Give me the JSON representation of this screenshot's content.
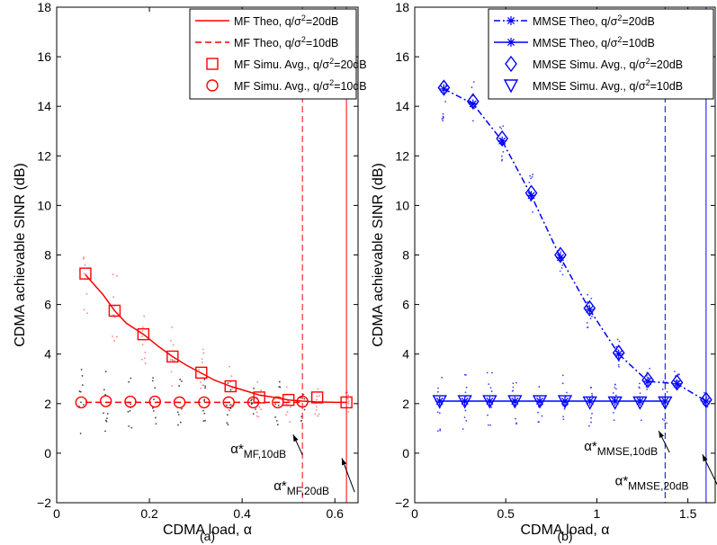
{
  "chart_data": [
    {
      "type": "line",
      "panel_label": "(a)",
      "xlabel": "CDMA load, α",
      "ylabel": "CDMA achievable SINR (dB)",
      "xlim": [
        0,
        0.65
      ],
      "ylim": [
        -2,
        18
      ],
      "xticks": [
        0,
        0.2,
        0.4,
        0.6
      ],
      "xtick_labels": [
        "0",
        "0.2",
        "0.4",
        "0.6"
      ],
      "yticks": [
        -2,
        0,
        2,
        4,
        6,
        8,
        10,
        12,
        14,
        16,
        18
      ],
      "ytick_labels": [
        "−2",
        "0",
        "2",
        "4",
        "6",
        "8",
        "10",
        "12",
        "14",
        "16",
        "18"
      ],
      "grid": false,
      "legend_position": "top-right",
      "color": "#ff0000",
      "series": [
        {
          "name": "MF Theo, q/σ²=20dB",
          "legend_main": "MF Theo, q/σ",
          "legend_sup": "2",
          "legend_tail": "=20dB",
          "style": "solid",
          "marker": "none",
          "x": [
            0.062,
            0.1,
            0.125,
            0.15,
            0.187,
            0.22,
            0.25,
            0.28,
            0.31,
            0.34,
            0.375,
            0.41,
            0.437,
            0.47,
            0.5,
            0.53,
            0.56,
            0.6,
            0.625
          ],
          "y": [
            7.2,
            6.4,
            5.75,
            5.25,
            4.8,
            4.3,
            3.9,
            3.55,
            3.25,
            2.95,
            2.7,
            2.5,
            2.35,
            2.25,
            2.15,
            2.1,
            2.07,
            2.05,
            2.05
          ]
        },
        {
          "name": "MF Theo, q/σ²=10dB",
          "legend_main": "MF Theo, q/σ",
          "legend_sup": "2",
          "legend_tail": "=10dB",
          "style": "dashed",
          "marker": "none",
          "x": [
            0.062,
            0.53
          ],
          "y": [
            2.05,
            2.05
          ]
        },
        {
          "name": "MF Simu. Avg., q/σ²=20dB",
          "legend_main": "MF Simu. Avg., q/σ",
          "legend_sup": "2",
          "legend_tail": "=20dB",
          "style": "none",
          "marker": "square",
          "x": [
            0.062,
            0.125,
            0.187,
            0.25,
            0.312,
            0.375,
            0.437,
            0.5,
            0.562,
            0.625
          ],
          "y": [
            7.25,
            5.75,
            4.8,
            3.9,
            3.25,
            2.7,
            2.25,
            2.15,
            2.25,
            2.05
          ]
        },
        {
          "name": "MF Simu. Avg., q/σ²=10dB",
          "legend_main": "MF Simu. Avg., q/σ",
          "legend_sup": "2",
          "legend_tail": "=10dB",
          "style": "none",
          "marker": "circle",
          "x": [
            0.053,
            0.106,
            0.159,
            0.212,
            0.265,
            0.318,
            0.371,
            0.424,
            0.477,
            0.53
          ],
          "y": [
            2.05,
            2.1,
            2.08,
            2.08,
            2.05,
            2.05,
            2.05,
            2.05,
            2.05,
            2.08
          ]
        }
      ],
      "vlines": [
        {
          "x": 0.53,
          "style": "dashed"
        },
        {
          "x": 0.625,
          "style": "solid"
        }
      ],
      "scatter_clouds": [
        {
          "x": [
            0.062,
            0.125,
            0.187,
            0.25,
            0.312,
            0.375,
            0.437,
            0.5,
            0.562,
            0.625
          ],
          "center": [
            7.25,
            5.75,
            4.8,
            3.9,
            3.25,
            2.7,
            2.25,
            2.15,
            2.25,
            2.05
          ],
          "spread": [
            1.9,
            1.6,
            1.4,
            1.3,
            1.1,
            1.0,
            0.9,
            0.9,
            0.8,
            0.5
          ],
          "color": "#ff8080"
        },
        {
          "x": [
            0.053,
            0.106,
            0.159,
            0.212,
            0.265,
            0.318,
            0.371,
            0.424,
            0.477,
            0.53
          ],
          "center": [
            2.05,
            2.1,
            2.08,
            2.08,
            2.05,
            2.05,
            2.05,
            2.05,
            2.05,
            2.08
          ],
          "spread": [
            1.4,
            1.3,
            1.2,
            1.2,
            1.1,
            1.0,
            1.0,
            0.9,
            0.9,
            0.8
          ],
          "color": "#404040"
        }
      ],
      "annotations": [
        {
          "main": "α*",
          "sub": "MF,10dB",
          "text_x": 0.375,
          "text_y": 0.0,
          "arrow_to": [
            0.51,
            0.75
          ]
        },
        {
          "main": "α*",
          "sub": "MF,20dB",
          "text_x": 0.468,
          "text_y": -1.5,
          "arrow_to": [
            0.615,
            -0.2
          ]
        }
      ]
    },
    {
      "type": "line",
      "panel_label": "(b)",
      "xlabel": "CDMA load, α",
      "ylabel": "CDMA achievable SINR (dB)",
      "xlim": [
        0,
        1.65
      ],
      "ylim": [
        -2,
        18
      ],
      "xticks": [
        0,
        0.5,
        1,
        1.5
      ],
      "xtick_labels": [
        "0",
        "0.5",
        "1",
        "1.5"
      ],
      "yticks": [
        -2,
        0,
        2,
        4,
        6,
        8,
        10,
        12,
        14,
        16,
        18
      ],
      "ytick_labels": [
        "−2",
        "0",
        "2",
        "4",
        "6",
        "8",
        "10",
        "12",
        "14",
        "16",
        "18"
      ],
      "grid": false,
      "legend_position": "top-right",
      "color": "#0000ff",
      "series": [
        {
          "name": "MMSE Theo, q/σ²=20dB",
          "legend_main": "MMSE Theo, q/σ",
          "legend_sup": "2",
          "legend_tail": "=20dB",
          "style": "dashdot",
          "marker": "star",
          "x": [
            0.16,
            0.32,
            0.48,
            0.64,
            0.8,
            0.96,
            1.12,
            1.28,
            1.44,
            1.6
          ],
          "y": [
            14.7,
            14.1,
            12.6,
            10.4,
            7.9,
            5.8,
            4.0,
            2.9,
            2.8,
            2.1
          ]
        },
        {
          "name": "MMSE Theo, q/σ²=10dB",
          "legend_main": "MMSE Theo, q/σ",
          "legend_sup": "2",
          "legend_tail": "=10dB",
          "style": "solid",
          "marker": "star",
          "x": [
            0.137,
            0.275,
            0.412,
            0.55,
            0.687,
            0.825,
            0.962,
            1.1,
            1.237,
            1.375
          ],
          "y": [
            2.1,
            2.1,
            2.1,
            2.1,
            2.1,
            2.1,
            2.1,
            2.1,
            2.1,
            2.1
          ]
        },
        {
          "name": "MMSE Simu. Avg., q/σ²=20dB",
          "legend_main": "MMSE Simu. Avg., q/σ",
          "legend_sup": "2",
          "legend_tail": "=20dB",
          "style": "none",
          "marker": "diamond",
          "x": [
            0.16,
            0.32,
            0.48,
            0.64,
            0.8,
            0.96,
            1.12,
            1.28,
            1.44,
            1.6
          ],
          "y": [
            14.75,
            14.2,
            12.7,
            10.5,
            8.0,
            5.85,
            4.05,
            2.95,
            2.85,
            2.15
          ]
        },
        {
          "name": "MMSE Simu. Avg., q/σ²=10dB",
          "legend_main": "MMSE Simu. Avg., q/σ",
          "legend_sup": "2",
          "legend_tail": "=10dB",
          "style": "none",
          "marker": "triangle-down",
          "x": [
            0.137,
            0.275,
            0.412,
            0.55,
            0.687,
            0.825,
            0.962,
            1.1,
            1.237,
            1.375
          ],
          "y": [
            2.1,
            2.1,
            2.1,
            2.1,
            2.1,
            2.1,
            2.05,
            2.05,
            2.05,
            2.05
          ]
        }
      ],
      "vlines": [
        {
          "x": 1.375,
          "style": "dashed"
        },
        {
          "x": 1.6,
          "style": "solid"
        }
      ],
      "scatter_clouds": [
        {
          "x": [
            0.16,
            0.32,
            0.48,
            0.64,
            0.8,
            0.96,
            1.12,
            1.28,
            1.44,
            1.6
          ],
          "center": [
            14.75,
            14.2,
            12.7,
            10.5,
            8.0,
            5.85,
            4.05,
            2.95,
            2.85,
            2.15
          ],
          "spread": [
            1.5,
            1.0,
            0.9,
            0.8,
            0.8,
            0.8,
            0.6,
            0.5,
            0.5,
            0.3
          ],
          "color": "#4040ff"
        },
        {
          "x": [
            0.137,
            0.275,
            0.412,
            0.55,
            0.687,
            0.825,
            0.962,
            1.1,
            1.237,
            1.375
          ],
          "center": [
            2.1,
            2.1,
            2.1,
            2.1,
            2.1,
            2.1,
            2.05,
            2.05,
            2.05,
            2.05
          ],
          "spread": [
            1.4,
            1.3,
            1.2,
            1.2,
            1.1,
            1.1,
            1.0,
            1.0,
            0.9,
            0.9
          ],
          "color": "#4040ff"
        }
      ],
      "annotations": [
        {
          "main": "α*",
          "sub": "MMSE,10dB",
          "text_x": 0.93,
          "text_y": 0.1,
          "arrow_to": [
            1.34,
            0.9
          ]
        },
        {
          "main": "α*",
          "sub": "MMSE,20dB",
          "text_x": 1.1,
          "text_y": -1.3,
          "arrow_to": [
            1.58,
            -0.05
          ]
        }
      ]
    }
  ]
}
